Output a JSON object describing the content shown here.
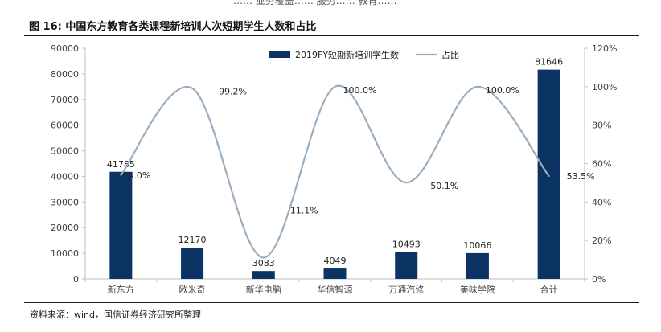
{
  "header": {
    "top_fragment": "…… 业务覆盖…… 服务…… 教育……",
    "figure_title": "图 16:  中国东方教育各类课程新培训人次短期学生人数和占比"
  },
  "source_note": "资料来源：wind，国信证券经济研究所整理",
  "colors": {
    "bar": "#0b3363",
    "line": "#9aaebe",
    "axis": "#bfbfbf",
    "text": "#404040"
  },
  "chart_data": {
    "type": "bar",
    "categories": [
      "新东方",
      "欧米奇",
      "新华电脑",
      "华信智源",
      "万通汽修",
      "美味学院",
      "合计"
    ],
    "series": [
      {
        "name": "2019FY短期新培训学生数",
        "type": "bar",
        "axis": "left",
        "values": [
          41785,
          12170,
          3083,
          4049,
          10493,
          10066,
          81646
        ],
        "labels": [
          "41785",
          "12170",
          "3083",
          "4049",
          "10493",
          "10066",
          "81646"
        ]
      },
      {
        "name": "占比",
        "type": "line",
        "axis": "right",
        "values": [
          54.0,
          99.2,
          11.1,
          100.0,
          50.1,
          100.0,
          53.5
        ],
        "labels": [
          "54.0%",
          "99.2%",
          "11.1%",
          "100.0%",
          "50.1%",
          "100.0%",
          "53.5%"
        ]
      }
    ],
    "y_left": {
      "min": 0,
      "max": 90000,
      "ticks": [
        0,
        10000,
        20000,
        30000,
        40000,
        50000,
        60000,
        70000,
        80000,
        90000
      ],
      "tick_labels": [
        "0",
        "10000",
        "20000",
        "30000",
        "40000",
        "50000",
        "60000",
        "70000",
        "80000",
        "90000"
      ]
    },
    "y_right": {
      "min": 0,
      "max": 120,
      "ticks": [
        0,
        20,
        40,
        60,
        80,
        100,
        120
      ],
      "tick_labels": [
        "0%",
        "20%",
        "40%",
        "60%",
        "80%",
        "100%",
        "120%"
      ]
    },
    "legend_position": "top-center",
    "grid": false
  }
}
